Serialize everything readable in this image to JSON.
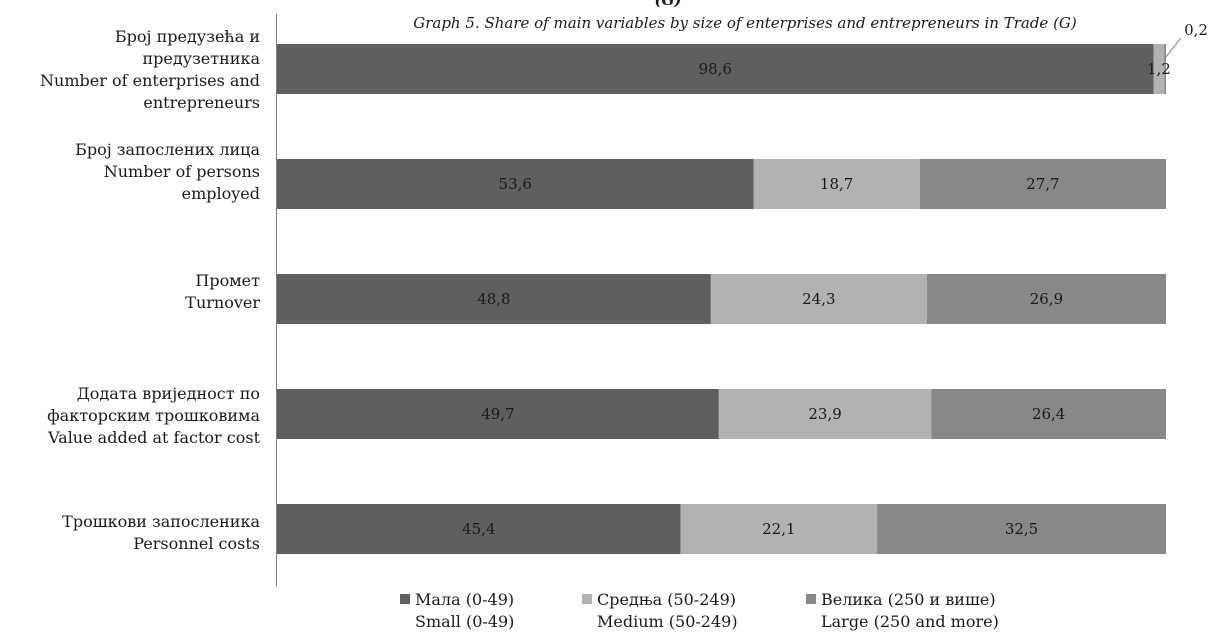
{
  "chart_data": {
    "type": "bar",
    "orientation": "horizontal",
    "stacked": "percent",
    "title_fragment": "(G)",
    "title": "Graph 5.  Share of main variables by size of enterprises and entrepreneurs  in Trade (G)",
    "categories": [
      [
        "Број предузећа и",
        "предузетника",
        "Number of enterprises and",
        "entrepreneurs"
      ],
      [
        "Број запослених лица",
        "Number of persons",
        "employed"
      ],
      [
        "Промет",
        "Turnover"
      ],
      [
        "Додата вриједност по",
        "факторским трошковима",
        "Value added at factor cost"
      ],
      [
        "Трошкови запосленика",
        "Personnel costs"
      ]
    ],
    "series": [
      {
        "name": [
          "Мала (0-49)",
          "Small (0-49)"
        ],
        "color": "#5f5f5f",
        "values": [
          98.6,
          53.6,
          48.8,
          49.7,
          45.4
        ],
        "labels": [
          "98,6",
          "53,6",
          "48,8",
          "49,7",
          "45,4"
        ]
      },
      {
        "name": [
          "Средња  (50-249)",
          "Medium (50-249)"
        ],
        "color": "#b2b2b2",
        "values": [
          1.2,
          18.7,
          24.3,
          23.9,
          22.1
        ],
        "labels": [
          "1,2",
          "18,7",
          "24,3",
          "23,9",
          "22,1"
        ]
      },
      {
        "name": [
          "Велика (250 и више)",
          "Large (250 and more)"
        ],
        "color": "#888888",
        "values": [
          0.2,
          27.7,
          26.9,
          26.4,
          32.5
        ],
        "labels": [
          "0,2",
          "27,7",
          "26,9",
          "26,4",
          "32,5"
        ]
      }
    ],
    "xlim": [
      0,
      100
    ],
    "grid": false,
    "legend_position": "bottom"
  }
}
